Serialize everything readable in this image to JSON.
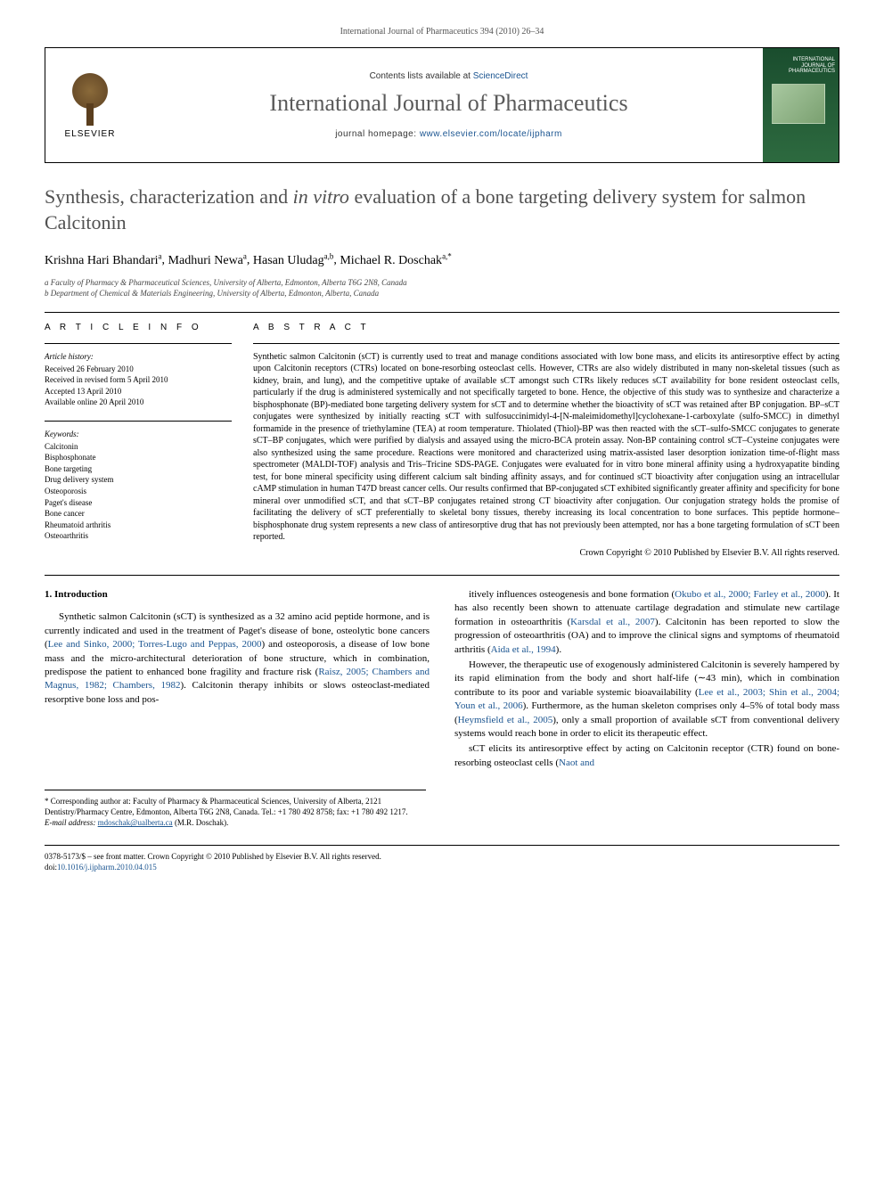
{
  "citation_header": "International Journal of Pharmaceutics 394 (2010) 26–34",
  "journal_box": {
    "contents_prefix": "Contents lists available at ",
    "contents_link": "ScienceDirect",
    "journal_name": "International Journal of Pharmaceutics",
    "homepage_prefix": "journal homepage: ",
    "homepage_url": "www.elsevier.com/locate/ijpharm",
    "publisher": "ELSEVIER",
    "cover_title": "INTERNATIONAL JOURNAL OF PHARMACEUTICS"
  },
  "title_pre": "Synthesis, characterization and ",
  "title_italic": "in vitro",
  "title_post": " evaluation of a bone targeting delivery system for salmon Calcitonin",
  "authors": [
    {
      "name": "Krishna Hari Bhandari",
      "aff": "a"
    },
    {
      "name": "Madhuri Newa",
      "aff": "a"
    },
    {
      "name": "Hasan Uludag",
      "aff": "a,b"
    },
    {
      "name": "Michael R. Doschak",
      "aff": "a,*"
    }
  ],
  "affiliations": [
    "a Faculty of Pharmacy & Pharmaceutical Sciences, University of Alberta, Edmonton, Alberta T6G 2N8, Canada",
    "b Department of Chemical & Materials Engineering, University of Alberta, Edmonton, Alberta, Canada"
  ],
  "article_info": {
    "heading": "A R T I C L E   I N F O",
    "history_label": "Article history:",
    "history": [
      "Received 26 February 2010",
      "Received in revised form 5 April 2010",
      "Accepted 13 April 2010",
      "Available online 20 April 2010"
    ],
    "keywords_label": "Keywords:",
    "keywords": [
      "Calcitonin",
      "Bisphosphonate",
      "Bone targeting",
      "Drug delivery system",
      "Osteoporosis",
      "Paget's disease",
      "Bone cancer",
      "Rheumatoid arthritis",
      "Osteoarthritis"
    ]
  },
  "abstract": {
    "heading": "A B S T R A C T",
    "text": "Synthetic salmon Calcitonin (sCT) is currently used to treat and manage conditions associated with low bone mass, and elicits its antiresorptive effect by acting upon Calcitonin receptors (CTRs) located on bone-resorbing osteoclast cells. However, CTRs are also widely distributed in many non-skeletal tissues (such as kidney, brain, and lung), and the competitive uptake of available sCT amongst such CTRs likely reduces sCT availability for bone resident osteoclast cells, particularly if the drug is administered systemically and not specifically targeted to bone. Hence, the objective of this study was to synthesize and characterize a bisphosphonate (BP)-mediated bone targeting delivery system for sCT and to determine whether the bioactivity of sCT was retained after BP conjugation. BP–sCT conjugates were synthesized by initially reacting sCT with sulfosuccinimidyl-4-[N-maleimidomethyl]cyclohexane-1-carboxylate (sulfo-SMCC) in dimethyl formamide in the presence of triethylamine (TEA) at room temperature. Thiolated (Thiol)-BP was then reacted with the sCT–sulfo-SMCC conjugates to generate sCT–BP conjugates, which were purified by dialysis and assayed using the micro-BCA protein assay. Non-BP containing control sCT–Cysteine conjugates were also synthesized using the same procedure. Reactions were monitored and characterized using matrix-assisted laser desorption ionization time-of-flight mass spectrometer (MALDI-TOF) analysis and Tris–Tricine SDS-PAGE. Conjugates were evaluated for in vitro bone mineral affinity using a hydroxyapatite binding test, for bone mineral specificity using different calcium salt binding affinity assays, and for continued sCT bioactivity after conjugation using an intracellular cAMP stimulation in human T47D breast cancer cells. Our results confirmed that BP-conjugated sCT exhibited significantly greater affinity and specificity for bone mineral over unmodified sCT, and that sCT–BP conjugates retained strong CT bioactivity after conjugation. Our conjugation strategy holds the promise of facilitating the delivery of sCT preferentially to skeletal bony tissues, thereby increasing its local concentration to bone surfaces. This peptide hormone–bisphosphonate drug system represents a new class of antiresorptive drug that has not previously been attempted, nor has a bone targeting formulation of sCT been reported.",
    "copyright": "Crown Copyright © 2010 Published by Elsevier B.V. All rights reserved."
  },
  "body": {
    "section_heading": "1. Introduction",
    "left_paragraphs": [
      {
        "runs": [
          {
            "t": "Synthetic salmon Calcitonin (sCT) is synthesized as a 32 amino acid peptide hormone, and is currently indicated and used in the treatment of Paget's disease of bone, osteolytic bone cancers ("
          },
          {
            "t": "Lee and Sinko, 2000; Torres-Lugo and Peppas, 2000",
            "cite": true
          },
          {
            "t": ") and osteoporosis, a disease of low bone mass and the micro-architectural deterioration of bone structure, which in combination, predispose the patient to enhanced bone fragility and fracture risk ("
          },
          {
            "t": "Raisz, 2005; Chambers and Magnus, 1982; Chambers, 1982",
            "cite": true
          },
          {
            "t": "). Calcitonin therapy inhibits or slows osteoclast-mediated resorptive bone loss and pos-"
          }
        ]
      }
    ],
    "right_paragraphs": [
      {
        "runs": [
          {
            "t": "itively influences osteogenesis and bone formation ("
          },
          {
            "t": "Okubo et al., 2000; Farley et al., 2000",
            "cite": true
          },
          {
            "t": "). It has also recently been shown to attenuate cartilage degradation and stimulate new cartilage formation in osteoarthritis ("
          },
          {
            "t": "Karsdal et al., 2007",
            "cite": true
          },
          {
            "t": "). Calcitonin has been reported to slow the progression of osteoarthritis (OA) and to improve the clinical signs and symptoms of rheumatoid arthritis ("
          },
          {
            "t": "Aida et al., 1994",
            "cite": true
          },
          {
            "t": ")."
          }
        ]
      },
      {
        "runs": [
          {
            "t": "However, the therapeutic use of exogenously administered Calcitonin is severely hampered by its rapid elimination from the body and short half-life (∼43 min), which in combination contribute to its poor and variable systemic bioavailability ("
          },
          {
            "t": "Lee et al., 2003; Shin et al., 2004; Youn et al., 2006",
            "cite": true
          },
          {
            "t": "). Furthermore, as the human skeleton comprises only 4–5% of total body mass ("
          },
          {
            "t": "Heymsfield et al., 2005",
            "cite": true
          },
          {
            "t": "), only a small proportion of available sCT from conventional delivery systems would reach bone in order to elicit its therapeutic effect."
          }
        ]
      },
      {
        "runs": [
          {
            "t": "sCT elicits its antiresorptive effect by acting on Calcitonin receptor (CTR) found on bone-resorbing osteoclast cells ("
          },
          {
            "t": "Naot and",
            "cite": true
          }
        ]
      }
    ]
  },
  "footnote": {
    "corresponding": "* Corresponding author at: Faculty of Pharmacy & Pharmaceutical Sciences, University of Alberta, 2121 Dentistry/Pharmacy Centre, Edmonton, Alberta T6G 2N8, Canada. Tel.: +1 780 492 8758; fax: +1 780 492 1217.",
    "email_label": "E-mail address: ",
    "email": "mdoschak@ualberta.ca",
    "email_author": " (M.R. Doschak)."
  },
  "footer": {
    "issn_line": "0378-5173/$ – see front matter. Crown Copyright © 2010 Published by Elsevier B.V. All rights reserved.",
    "doi_label": "doi:",
    "doi": "10.1016/j.ijpharm.2010.04.015"
  },
  "colors": {
    "link": "#1a5490",
    "title_grey": "#505050",
    "text": "#000000"
  }
}
